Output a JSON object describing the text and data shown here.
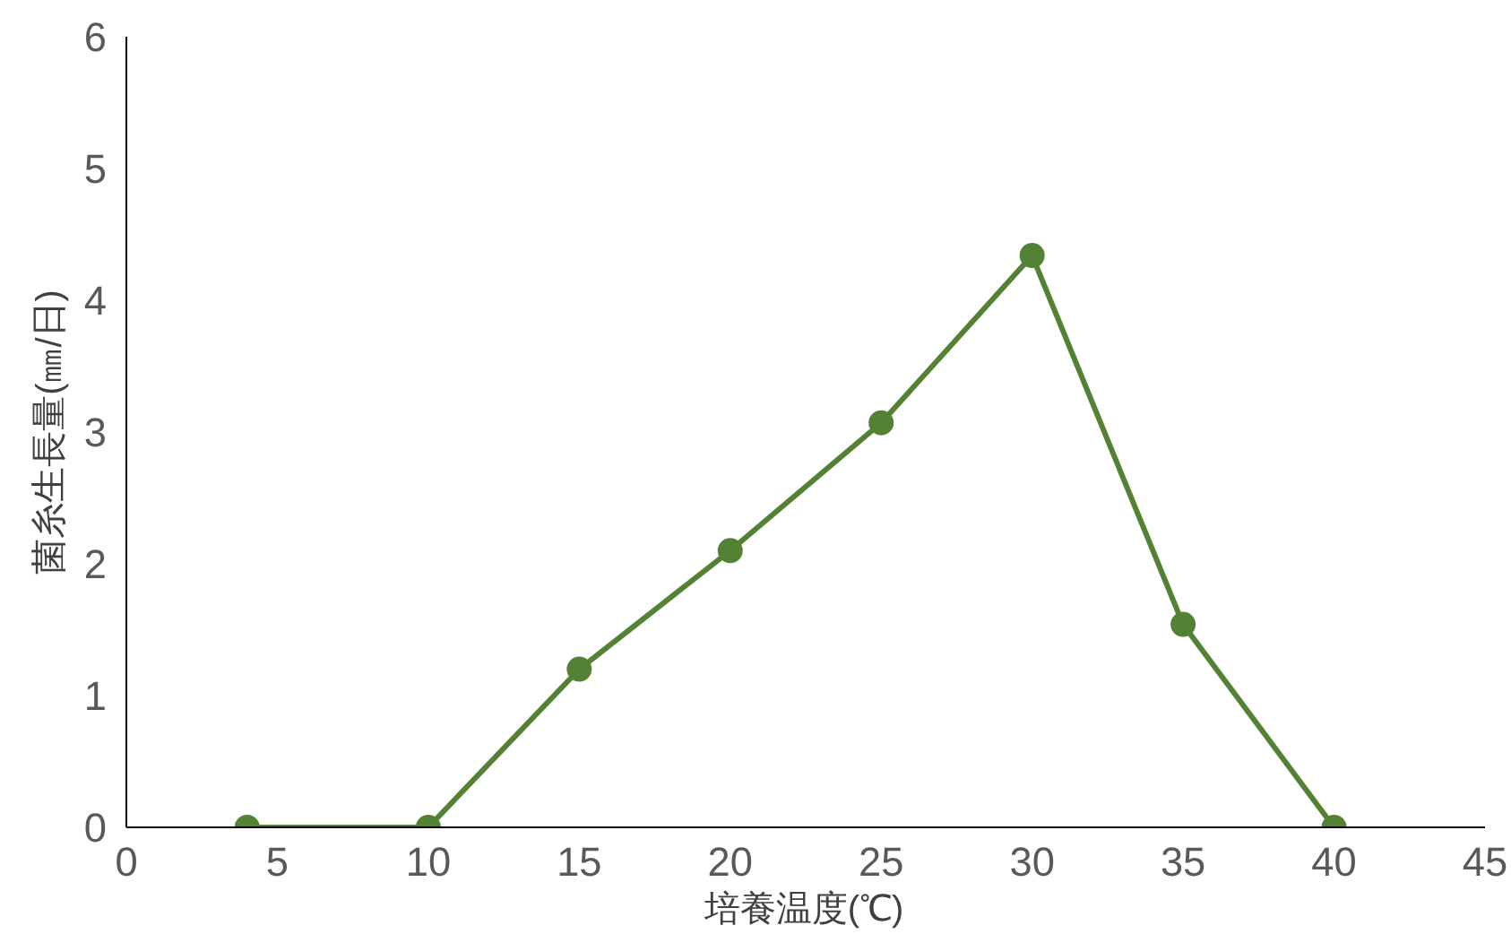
{
  "chart_data": {
    "type": "line",
    "xlabel": "培養温度(℃)",
    "ylabel": "菌糸生長量(㎜/日)",
    "x": [
      4,
      10,
      15,
      20,
      25,
      30,
      35,
      40
    ],
    "series": [
      {
        "color": "#548235",
        "values": [
          0,
          0,
          1.2,
          2.1,
          3.07,
          4.34,
          1.54,
          0
        ]
      }
    ],
    "xlim": [
      0,
      45
    ],
    "xticks": [
      0,
      5,
      10,
      15,
      20,
      25,
      30,
      35,
      40,
      45
    ],
    "ylim": [
      0,
      6
    ],
    "yticks": [
      0,
      1,
      2,
      3,
      4,
      5,
      6
    ],
    "grid": false,
    "marker": "circle",
    "line_style": "solid"
  }
}
